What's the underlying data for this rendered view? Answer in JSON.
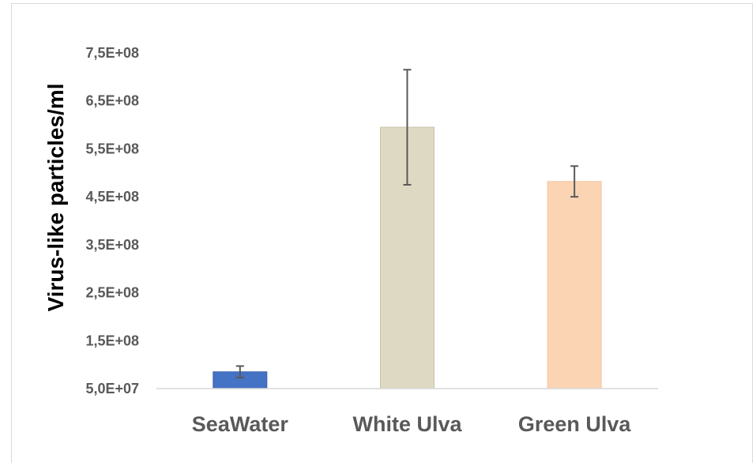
{
  "chart_data": {
    "type": "bar",
    "title": "",
    "xlabel": "",
    "ylabel": "Virus-like particles/ml",
    "categories": [
      "SeaWater",
      "White Ulva",
      "Green Ulva"
    ],
    "values": [
      85000000,
      595000000,
      482000000
    ],
    "error": [
      12000000,
      120000000,
      32000000
    ],
    "colors": [
      "#4472c4",
      "#ddd9c3",
      "#fbd4b4"
    ],
    "bar_border_colors": [
      "#3a63ad",
      "#c9c3a8",
      "#f5c7a2"
    ],
    "ylim": [
      50000000,
      750000000
    ],
    "yticks": [
      50000000,
      150000000,
      250000000,
      350000000,
      450000000,
      550000000,
      650000000,
      750000000
    ],
    "ytick_labels": [
      "5,0E+07",
      "1,5E+08",
      "2,5E+08",
      "3,5E+08",
      "4,5E+08",
      "5,5E+08",
      "6,5E+08",
      "7,5E+08"
    ],
    "grid": false,
    "legend": "none"
  }
}
